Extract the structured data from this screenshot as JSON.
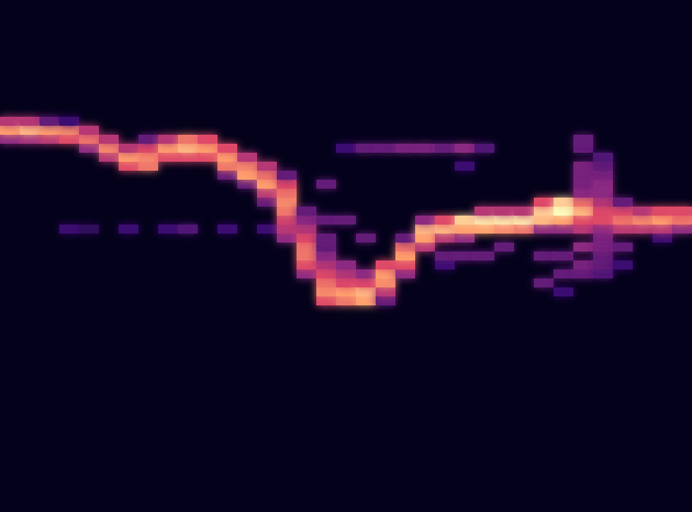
{
  "chart_data": {
    "type": "heatmap",
    "xlim": [
      0,
      35
    ],
    "ylim": [
      0,
      57
    ],
    "tick_labels": false,
    "color_range": [
      0,
      1
    ],
    "cells": [
      [
        0,
        41,
        0.4
      ],
      [
        0,
        42,
        0.8
      ],
      [
        0,
        43,
        0.5
      ],
      [
        1,
        41,
        0.45
      ],
      [
        1,
        42,
        0.85
      ],
      [
        1,
        43,
        0.5
      ],
      [
        2,
        41,
        0.5
      ],
      [
        2,
        42,
        0.8
      ],
      [
        2,
        43,
        0.3
      ],
      [
        3,
        41,
        0.6
      ],
      [
        3,
        42,
        0.75
      ],
      [
        3,
        43,
        0.2
      ],
      [
        3,
        31,
        0.2
      ],
      [
        4,
        40,
        0.4
      ],
      [
        4,
        41,
        0.7
      ],
      [
        4,
        42,
        0.5
      ],
      [
        4,
        31,
        0.15
      ],
      [
        5,
        39,
        0.5
      ],
      [
        5,
        40,
        0.75
      ],
      [
        5,
        41,
        0.5
      ],
      [
        6,
        38,
        0.6
      ],
      [
        6,
        39,
        0.8
      ],
      [
        6,
        40,
        0.5
      ],
      [
        6,
        31,
        0.2
      ],
      [
        7,
        38,
        0.7
      ],
      [
        7,
        39,
        0.75
      ],
      [
        7,
        40,
        0.6
      ],
      [
        7,
        41,
        0.3
      ],
      [
        8,
        39,
        0.6
      ],
      [
        8,
        40,
        0.8
      ],
      [
        8,
        41,
        0.5
      ],
      [
        8,
        31,
        0.2
      ],
      [
        9,
        39,
        0.6
      ],
      [
        9,
        40,
        0.85
      ],
      [
        9,
        41,
        0.7
      ],
      [
        9,
        31,
        0.25
      ],
      [
        10,
        39,
        0.6
      ],
      [
        10,
        40,
        0.8
      ],
      [
        10,
        41,
        0.6
      ],
      [
        11,
        37,
        0.3
      ],
      [
        11,
        38,
        0.7
      ],
      [
        11,
        39,
        0.8
      ],
      [
        11,
        40,
        0.6
      ],
      [
        11,
        31,
        0.2
      ],
      [
        12,
        36,
        0.3
      ],
      [
        12,
        37,
        0.8
      ],
      [
        12,
        38,
        0.75
      ],
      [
        12,
        39,
        0.5
      ],
      [
        13,
        34,
        0.3
      ],
      [
        13,
        35,
        0.5
      ],
      [
        13,
        36,
        0.8
      ],
      [
        13,
        37,
        0.7
      ],
      [
        13,
        38,
        0.5
      ],
      [
        13,
        31,
        0.2
      ],
      [
        14,
        30,
        0.4
      ],
      [
        14,
        31,
        0.5
      ],
      [
        14,
        32,
        0.55
      ],
      [
        14,
        33,
        0.7
      ],
      [
        14,
        34,
        0.75
      ],
      [
        14,
        35,
        0.7
      ],
      [
        14,
        36,
        0.6
      ],
      [
        14,
        37,
        0.3
      ],
      [
        15,
        26,
        0.4
      ],
      [
        15,
        27,
        0.6
      ],
      [
        15,
        28,
        0.7
      ],
      [
        15,
        29,
        0.7
      ],
      [
        15,
        30,
        0.6
      ],
      [
        15,
        31,
        0.5
      ],
      [
        15,
        32,
        0.4
      ],
      [
        15,
        33,
        0.3
      ],
      [
        16,
        23,
        0.6
      ],
      [
        16,
        24,
        0.75
      ],
      [
        16,
        25,
        0.7
      ],
      [
        16,
        26,
        0.6
      ],
      [
        16,
        27,
        0.5
      ],
      [
        16,
        28,
        0.4
      ],
      [
        16,
        29,
        0.3
      ],
      [
        16,
        30,
        0.3
      ],
      [
        16,
        32,
        0.3
      ],
      [
        16,
        36,
        0.3
      ],
      [
        17,
        23,
        0.7
      ],
      [
        17,
        24,
        0.8
      ],
      [
        17,
        25,
        0.6
      ],
      [
        17,
        26,
        0.5
      ],
      [
        17,
        27,
        0.4
      ],
      [
        17,
        32,
        0.3
      ],
      [
        17,
        40,
        0.2
      ],
      [
        18,
        23,
        0.8
      ],
      [
        18,
        24,
        0.85
      ],
      [
        18,
        25,
        0.6
      ],
      [
        18,
        26,
        0.4
      ],
      [
        18,
        30,
        0.3
      ],
      [
        18,
        40,
        0.3
      ],
      [
        19,
        23,
        0.3
      ],
      [
        19,
        24,
        0.5
      ],
      [
        19,
        25,
        0.75
      ],
      [
        19,
        26,
        0.8
      ],
      [
        19,
        27,
        0.6
      ],
      [
        19,
        40,
        0.3
      ],
      [
        20,
        26,
        0.4
      ],
      [
        20,
        27,
        0.6
      ],
      [
        20,
        28,
        0.8
      ],
      [
        20,
        29,
        0.7
      ],
      [
        20,
        30,
        0.3
      ],
      [
        20,
        40,
        0.35
      ],
      [
        21,
        29,
        0.5
      ],
      [
        21,
        30,
        0.8
      ],
      [
        21,
        31,
        0.85
      ],
      [
        21,
        32,
        0.4
      ],
      [
        21,
        40,
        0.35
      ],
      [
        22,
        27,
        0.2
      ],
      [
        22,
        28,
        0.3
      ],
      [
        22,
        30,
        0.5
      ],
      [
        22,
        31,
        0.85
      ],
      [
        22,
        32,
        0.6
      ],
      [
        22,
        40,
        0.3
      ],
      [
        23,
        28,
        0.3
      ],
      [
        23,
        30,
        0.4
      ],
      [
        23,
        31,
        0.8
      ],
      [
        23,
        32,
        0.9
      ],
      [
        23,
        38,
        0.2
      ],
      [
        23,
        40,
        0.4
      ],
      [
        24,
        28,
        0.3
      ],
      [
        24,
        31,
        0.8
      ],
      [
        24,
        32,
        0.95
      ],
      [
        24,
        33,
        0.5
      ],
      [
        24,
        40,
        0.25
      ],
      [
        25,
        29,
        0.3
      ],
      [
        25,
        31,
        0.75
      ],
      [
        25,
        32,
        0.95
      ],
      [
        25,
        33,
        0.5
      ],
      [
        26,
        31,
        0.7
      ],
      [
        26,
        32,
        0.95
      ],
      [
        26,
        33,
        0.5
      ],
      [
        27,
        25,
        0.3
      ],
      [
        27,
        28,
        0.3
      ],
      [
        27,
        31,
        0.4
      ],
      [
        27,
        32,
        0.85
      ],
      [
        27,
        33,
        0.9
      ],
      [
        27,
        34,
        0.6
      ],
      [
        28,
        24,
        0.2
      ],
      [
        28,
        26,
        0.3
      ],
      [
        28,
        28,
        0.3
      ],
      [
        28,
        31,
        0.4
      ],
      [
        28,
        32,
        0.8
      ],
      [
        28,
        33,
        1.0
      ],
      [
        28,
        34,
        0.9
      ],
      [
        29,
        26,
        0.3
      ],
      [
        29,
        27,
        0.35
      ],
      [
        29,
        29,
        0.4
      ],
      [
        29,
        31,
        0.5
      ],
      [
        29,
        32,
        0.6
      ],
      [
        29,
        33,
        0.85
      ],
      [
        29,
        34,
        0.7
      ],
      [
        29,
        35,
        0.4
      ],
      [
        29,
        36,
        0.35
      ],
      [
        29,
        37,
        0.35
      ],
      [
        29,
        38,
        0.35
      ],
      [
        29,
        40,
        0.3
      ],
      [
        29,
        41,
        0.3
      ],
      [
        30,
        26,
        0.25
      ],
      [
        30,
        27,
        0.3
      ],
      [
        30,
        28,
        0.3
      ],
      [
        30,
        29,
        0.35
      ],
      [
        30,
        30,
        0.35
      ],
      [
        30,
        31,
        0.4
      ],
      [
        30,
        32,
        0.6
      ],
      [
        30,
        33,
        0.6
      ],
      [
        30,
        34,
        0.5
      ],
      [
        30,
        35,
        0.4
      ],
      [
        30,
        36,
        0.4
      ],
      [
        30,
        37,
        0.35
      ],
      [
        30,
        38,
        0.3
      ],
      [
        30,
        39,
        0.25
      ],
      [
        31,
        27,
        0.2
      ],
      [
        31,
        29,
        0.3
      ],
      [
        31,
        31,
        0.5
      ],
      [
        31,
        32,
        0.7
      ],
      [
        31,
        33,
        0.6
      ],
      [
        31,
        34,
        0.3
      ],
      [
        32,
        31,
        0.5
      ],
      [
        32,
        32,
        0.75
      ],
      [
        32,
        33,
        0.5
      ],
      [
        33,
        30,
        0.2
      ],
      [
        33,
        31,
        0.5
      ],
      [
        33,
        32,
        0.8
      ],
      [
        33,
        33,
        0.6
      ],
      [
        34,
        31,
        0.4
      ],
      [
        34,
        32,
        0.7
      ],
      [
        34,
        33,
        0.6
      ]
    ]
  }
}
